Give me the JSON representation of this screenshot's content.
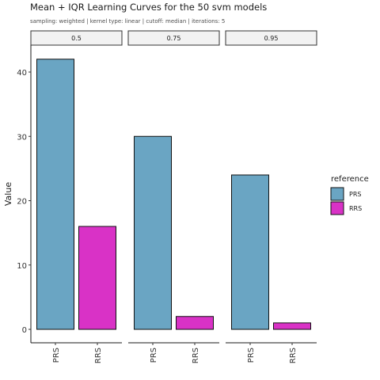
{
  "chart_data": {
    "type": "bar",
    "title": "Mean + IQR Learning Curves for the 50 svm models",
    "subtitle": "sampling: weighted | kernel type: linear | cutoff: median | iterations: 5",
    "ylabel": "Value",
    "xlabel": "",
    "ylim": [
      0,
      45
    ],
    "yticks": [
      0,
      10,
      20,
      30,
      40
    ],
    "grid": false,
    "legend": {
      "title": "reference",
      "placement": "right",
      "entries": [
        {
          "label": "PRS",
          "color": "#6aa5c3"
        },
        {
          "label": "RRS",
          "color": "#d932c6"
        }
      ]
    },
    "categories": [
      "PRS",
      "RRS"
    ],
    "facets": [
      {
        "label": "0.5",
        "values": [
          42,
          16
        ]
      },
      {
        "label": "0.75",
        "values": [
          30,
          2
        ]
      },
      {
        "label": "0.95",
        "values": [
          24,
          1
        ]
      }
    ],
    "colors": {
      "PRS": "#6aa5c3",
      "RRS": "#d932c6"
    }
  }
}
